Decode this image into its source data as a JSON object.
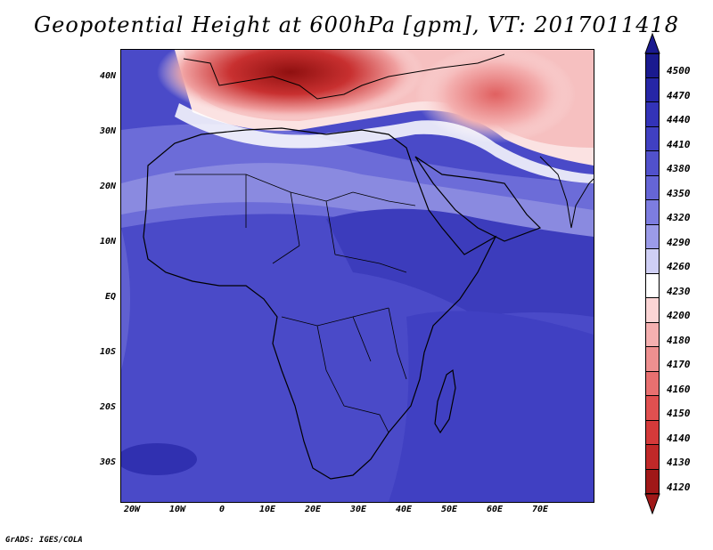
{
  "title": "Geopotential Height at 600hPa [gpm], VT: 2017011418",
  "credit": "GrADS: IGES/COLA",
  "map": {
    "lat_labels": [
      "40N",
      "30N",
      "20N",
      "10N",
      "EQ",
      "10S",
      "20S",
      "30S"
    ],
    "lon_labels": [
      "20W",
      "10W",
      "0",
      "10E",
      "20E",
      "30E",
      "40E",
      "50E",
      "60E",
      "70E"
    ]
  },
  "colorbar": {
    "labels": [
      "4500",
      "4470",
      "4440",
      "4410",
      "4380",
      "4350",
      "4320",
      "4290",
      "4260",
      "4230",
      "4200",
      "4180",
      "4170",
      "4160",
      "4150",
      "4140",
      "4130",
      "4120"
    ],
    "colors": [
      "#1a1a8f",
      "#2626a6",
      "#3333b8",
      "#4040c2",
      "#5151cc",
      "#6565d6",
      "#7d7de0",
      "#9b9be8",
      "#cfcff5",
      "#ffffff",
      "#fbd5d5",
      "#f5b0b0",
      "#ee9090",
      "#e87070",
      "#e05050",
      "#d43a3a",
      "#c02828",
      "#a01818"
    ]
  }
}
